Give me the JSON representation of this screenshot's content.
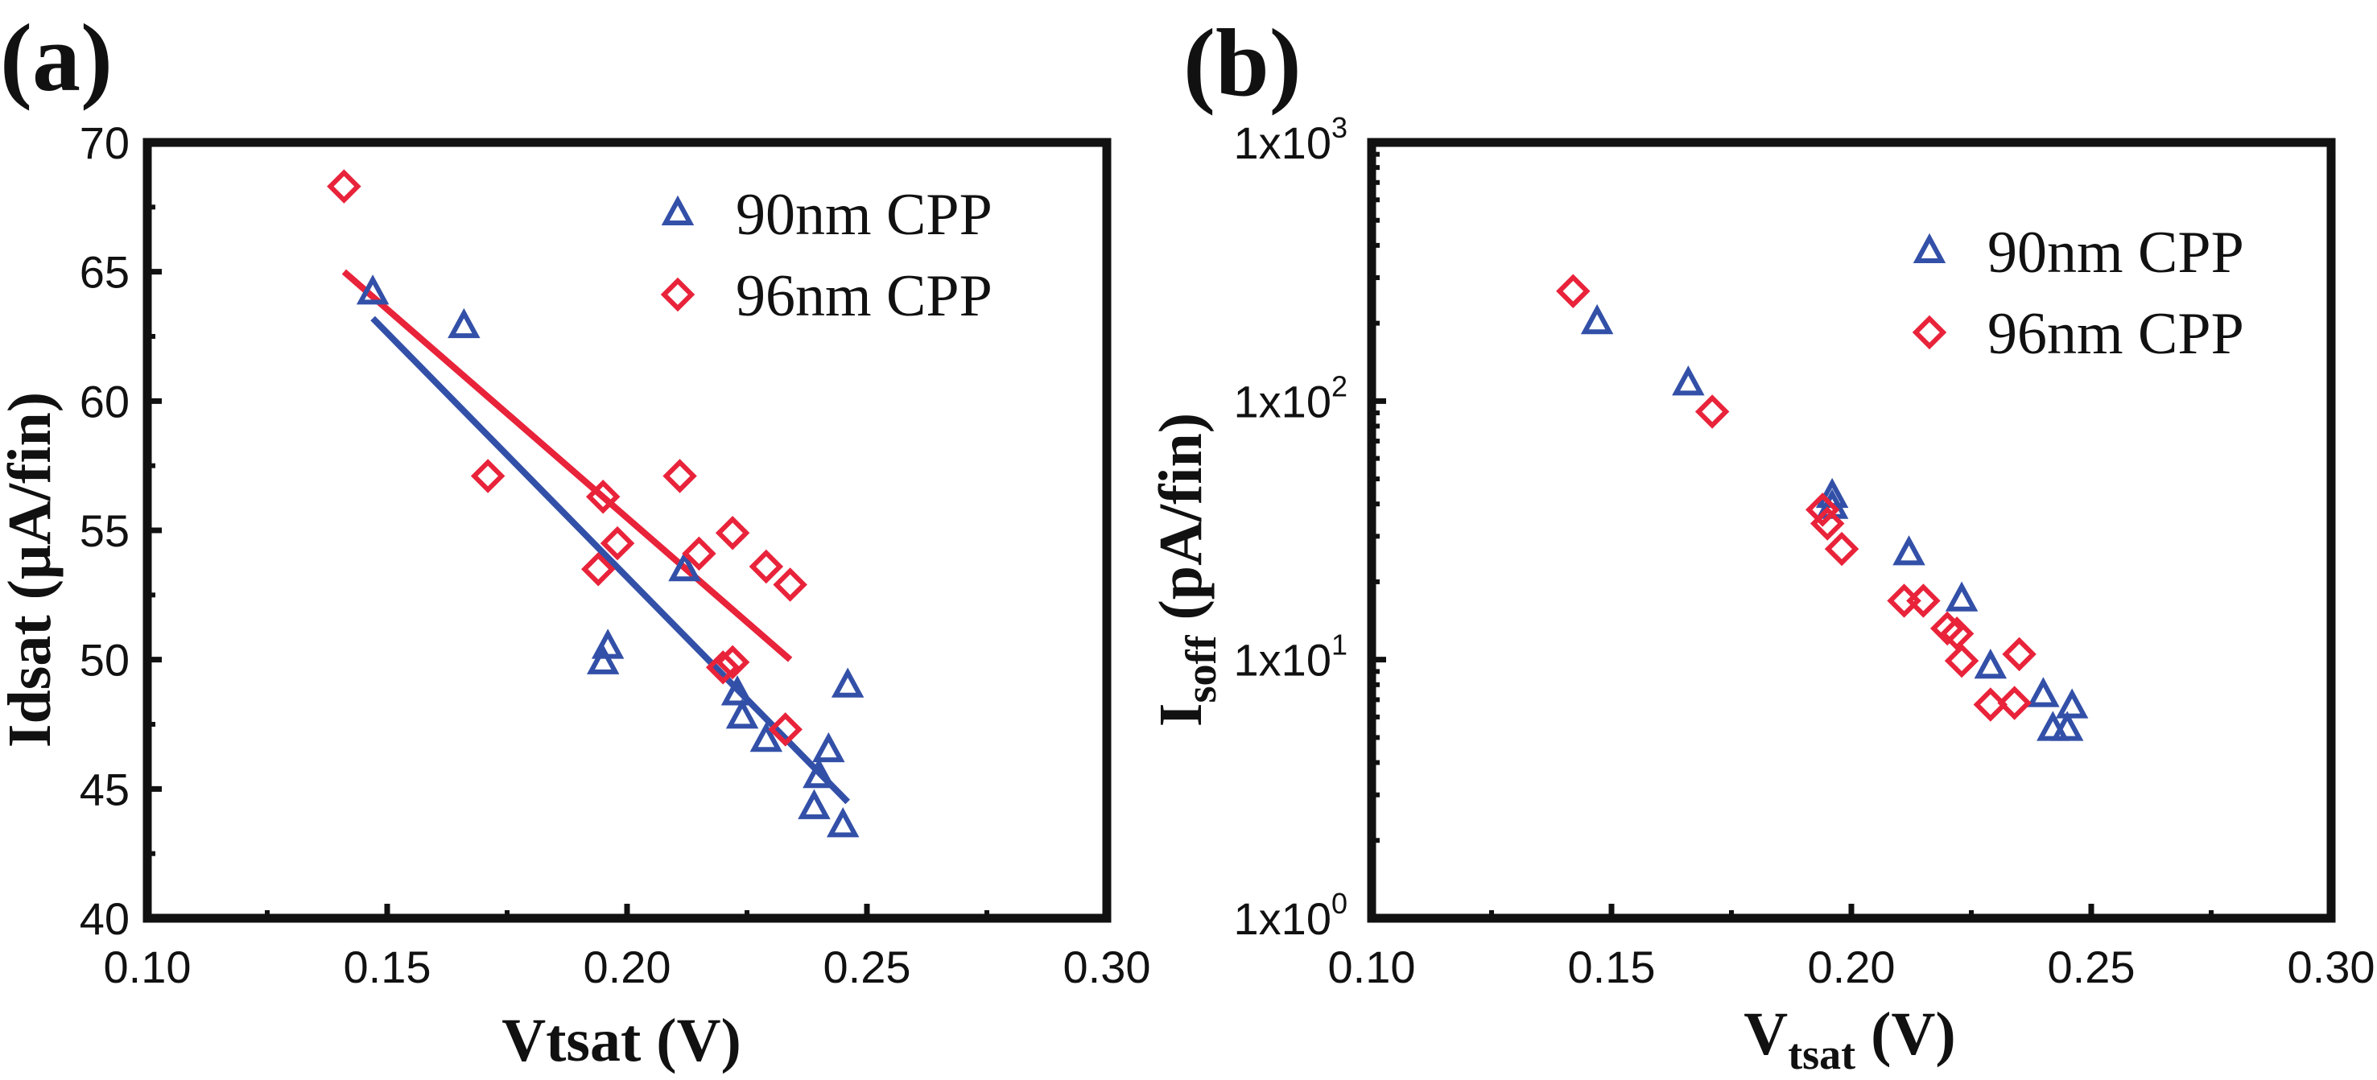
{
  "colors": {
    "blue": "#3350a8",
    "red": "#e8233a",
    "axis": "#111111"
  },
  "chart_data": [
    {
      "panel_label": "(a)",
      "type": "scatter",
      "xlabel": "Vtsat (V)",
      "ylabel": "Idsat (μA/fin)",
      "xlim": [
        0.1,
        0.3
      ],
      "ylim": [
        40,
        70
      ],
      "yscale": "linear",
      "xticks": [
        "0.10",
        "0.15",
        "0.20",
        "0.25",
        "0.30"
      ],
      "yticks": [
        "40",
        "45",
        "50",
        "55",
        "60",
        "65",
        "70"
      ],
      "legend_position": "top-right",
      "series": [
        {
          "name": "90nm CPP",
          "marker": "triangle",
          "color": "#3350a8",
          "x": [
            0.147,
            0.166,
            0.196,
            0.195,
            0.212,
            0.223,
            0.224,
            0.229,
            0.242,
            0.24,
            0.239,
            0.246,
            0.245
          ],
          "y": [
            64.2,
            62.9,
            50.5,
            49.9,
            53.5,
            48.7,
            47.8,
            46.9,
            46.5,
            45.5,
            44.3,
            49.0,
            43.6
          ],
          "fit": {
            "x": [
              0.147,
              0.246
            ],
            "y": [
              63.2,
              44.5
            ]
          }
        },
        {
          "name": "96nm CPP",
          "marker": "diamond",
          "color": "#e8233a",
          "x": [
            0.141,
            0.171,
            0.195,
            0.194,
            0.198,
            0.211,
            0.215,
            0.222,
            0.22,
            0.222,
            0.229,
            0.234,
            0.233
          ],
          "y": [
            68.3,
            57.1,
            56.3,
            53.5,
            54.5,
            57.1,
            54.1,
            54.9,
            49.7,
            49.9,
            53.6,
            52.9,
            47.3
          ],
          "fit": {
            "x": [
              0.141,
              0.234
            ],
            "y": [
              65.0,
              50.0
            ]
          }
        }
      ]
    },
    {
      "panel_label": "(b)",
      "type": "scatter",
      "xlabel": "Vtsat (V)",
      "xlabel_main": "V",
      "xlabel_sub": "tsat",
      "xlabel_rest": " (V)",
      "ylabel_main": "I",
      "ylabel_sub": "soff",
      "ylabel_rest": " (pA/fin)",
      "xlim": [
        0.1,
        0.3
      ],
      "ylim": [
        1,
        1000
      ],
      "yscale": "log",
      "xticks": [
        "0.10",
        "0.15",
        "0.20",
        "0.25",
        "0.30"
      ],
      "yticks": [
        {
          "base": "1x10",
          "exp": "0"
        },
        {
          "base": "1x10",
          "exp": "1"
        },
        {
          "base": "1x10",
          "exp": "2"
        },
        {
          "base": "1x10",
          "exp": "3"
        }
      ],
      "legend_position": "top-right",
      "series": [
        {
          "name": "90nm CPP",
          "marker": "triangle",
          "color": "#3350a8",
          "x": [
            0.147,
            0.166,
            0.196,
            0.196,
            0.212,
            0.223,
            0.229,
            0.24,
            0.242,
            0.246,
            0.245
          ],
          "y": [
            202,
            117,
            43,
            39,
            25.8,
            17.1,
            9.4,
            7.3,
            5.4,
            6.6,
            5.4
          ]
        },
        {
          "name": "96nm CPP",
          "marker": "diamond",
          "color": "#e8233a",
          "x": [
            0.142,
            0.171,
            0.194,
            0.195,
            0.198,
            0.211,
            0.215,
            0.22,
            0.222,
            0.223,
            0.229,
            0.234,
            0.235
          ],
          "y": [
            266,
            91,
            38,
            33.6,
            26.8,
            16.9,
            16.9,
            13.2,
            12.6,
            9.9,
            6.7,
            6.8,
            10.5
          ]
        }
      ]
    }
  ]
}
